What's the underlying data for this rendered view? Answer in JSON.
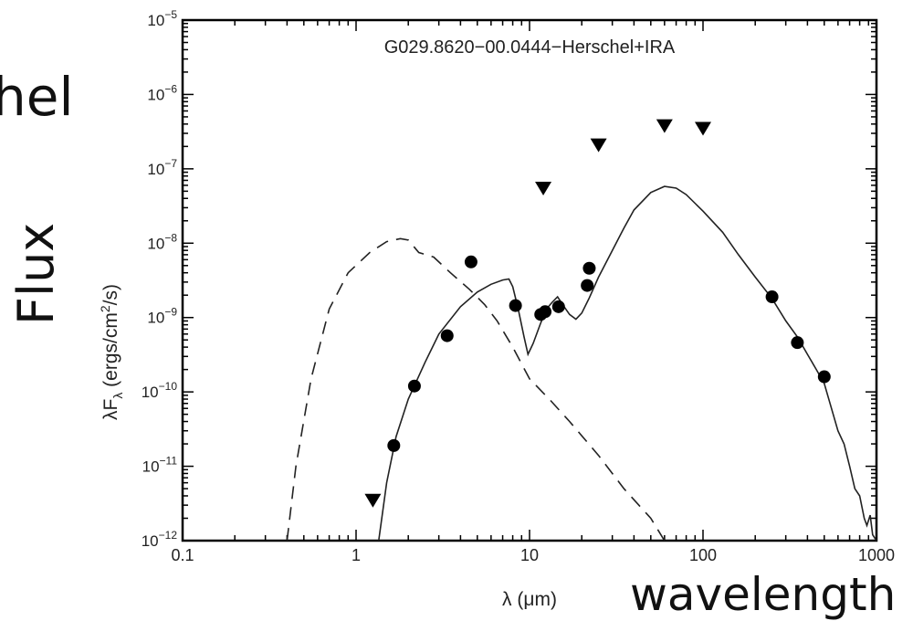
{
  "slide": {
    "left_fragment": "hel",
    "flux_label": "Flux",
    "wavelength_label": "wavelength"
  },
  "chart_data": {
    "type": "scatter",
    "title": "G029.8620−00.0444−Herschel+IRA",
    "xlabel": "λ (μm)",
    "ylabel_main": "λF",
    "ylabel_sub": "λ",
    "ylabel_units": " (ergs/cm",
    "ylabel_sup": "2",
    "ylabel_end": "/s)",
    "x_scale": "log",
    "y_scale": "log",
    "xlim": [
      0.1,
      1000
    ],
    "ylim": [
      1e-12,
      1e-05
    ],
    "x_ticks": [
      {
        "value": 0.1,
        "label": "0.1"
      },
      {
        "value": 1,
        "label": "1"
      },
      {
        "value": 10,
        "label": "10"
      },
      {
        "value": 100,
        "label": "100"
      },
      {
        "value": 1000,
        "label": "1000"
      }
    ],
    "y_ticks": [
      {
        "value": 1e-12,
        "base": "10",
        "exp": "−12"
      },
      {
        "value": 1e-11,
        "base": "10",
        "exp": "−11"
      },
      {
        "value": 1e-10,
        "base": "10",
        "exp": "−10"
      },
      {
        "value": 1e-09,
        "base": "10",
        "exp": "−9"
      },
      {
        "value": 1e-08,
        "base": "10",
        "exp": "−8"
      },
      {
        "value": 1e-07,
        "base": "10",
        "exp": "−7"
      },
      {
        "value": 1e-06,
        "base": "10",
        "exp": "−6"
      },
      {
        "value": 1e-05,
        "base": "10",
        "exp": "−5"
      }
    ],
    "detections": [
      [
        1.65,
        1.9e-11
      ],
      [
        2.17,
        1.2e-10
      ],
      [
        3.35,
        5.7e-10
      ],
      [
        4.6,
        5.6e-09
      ],
      [
        8.3,
        1.45e-09
      ],
      [
        11.6,
        1.1e-09
      ],
      [
        12.3,
        1.2e-09
      ],
      [
        14.7,
        1.4e-09
      ],
      [
        21.5,
        2.7e-09
      ],
      [
        22.1,
        4.6e-09
      ],
      [
        250,
        1.9e-09
      ],
      [
        350,
        4.6e-10
      ],
      [
        500,
        1.6e-10
      ]
    ],
    "upper_limits": [
      [
        1.25,
        3.5e-12
      ],
      [
        12,
        5.5e-08
      ],
      [
        25,
        2.1e-07
      ],
      [
        60,
        3.8e-07
      ],
      [
        100,
        3.5e-07
      ]
    ],
    "series": [
      {
        "style": "solid",
        "points": [
          [
            1.35,
            1e-12
          ],
          [
            1.5,
            6e-12
          ],
          [
            1.7,
            2.5e-11
          ],
          [
            2.0,
            8e-11
          ],
          [
            2.5,
            2.5e-10
          ],
          [
            3.0,
            6e-10
          ],
          [
            4.0,
            1.4e-09
          ],
          [
            5.0,
            2.2e-09
          ],
          [
            6.0,
            2.8e-09
          ],
          [
            7.0,
            3.2e-09
          ],
          [
            7.6,
            3.3e-09
          ],
          [
            8.0,
            2.6e-09
          ],
          [
            8.6,
            1.3e-09
          ],
          [
            9.3,
            5.5e-10
          ],
          [
            9.8,
            3.2e-10
          ],
          [
            10.5,
            4.5e-10
          ],
          [
            11.5,
            8e-10
          ],
          [
            12.5,
            1.3e-09
          ],
          [
            13.5,
            1.6e-09
          ],
          [
            14.5,
            1.9e-09
          ],
          [
            15.5,
            1.5e-09
          ],
          [
            17,
            1.1e-09
          ],
          [
            18.5,
            9.5e-10
          ],
          [
            20,
            1.15e-09
          ],
          [
            22,
            1.8e-09
          ],
          [
            25,
            3.5e-09
          ],
          [
            30,
            8e-09
          ],
          [
            35,
            1.6e-08
          ],
          [
            40,
            2.8e-08
          ],
          [
            50,
            4.8e-08
          ],
          [
            60,
            5.8e-08
          ],
          [
            70,
            5.5e-08
          ],
          [
            80,
            4.5e-08
          ],
          [
            100,
            2.7e-08
          ],
          [
            130,
            1.4e-08
          ],
          [
            160,
            7e-09
          ],
          [
            200,
            3.5e-09
          ],
          [
            250,
            1.8e-09
          ],
          [
            300,
            9e-10
          ],
          [
            350,
            5.5e-10
          ],
          [
            400,
            3.2e-10
          ],
          [
            450,
            2e-10
          ],
          [
            500,
            1.3e-10
          ],
          [
            550,
            6e-11
          ],
          [
            600,
            3e-11
          ],
          [
            650,
            2e-11
          ],
          [
            700,
            1e-11
          ],
          [
            750,
            5e-12
          ],
          [
            800,
            4e-12
          ],
          [
            850,
            2e-12
          ],
          [
            880,
            1.6e-12
          ],
          [
            920,
            2.2e-12
          ],
          [
            950,
            1.2e-12
          ],
          [
            1000,
            1e-12
          ]
        ]
      },
      {
        "style": "dashed",
        "points": [
          [
            0.4,
            1e-12
          ],
          [
            0.45,
            1e-11
          ],
          [
            0.55,
            1.5e-10
          ],
          [
            0.7,
            1.3e-09
          ],
          [
            0.9,
            4e-09
          ],
          [
            1.2,
            7.5e-09
          ],
          [
            1.5,
            1.05e-08
          ],
          [
            1.8,
            1.15e-08
          ],
          [
            2.0,
            1.1e-08
          ],
          [
            2.3,
            7.5e-09
          ],
          [
            2.8,
            6.5e-09
          ],
          [
            3.5,
            4e-09
          ],
          [
            4.5,
            2.4e-09
          ],
          [
            5.5,
            1.5e-09
          ],
          [
            6.5,
            9e-10
          ],
          [
            8.0,
            4e-10
          ],
          [
            10,
            1.5e-10
          ],
          [
            13,
            8e-11
          ],
          [
            17,
            4e-11
          ],
          [
            25,
            1.4e-11
          ],
          [
            35,
            5e-12
          ],
          [
            50,
            2e-12
          ],
          [
            60,
            1e-12
          ]
        ]
      }
    ]
  }
}
